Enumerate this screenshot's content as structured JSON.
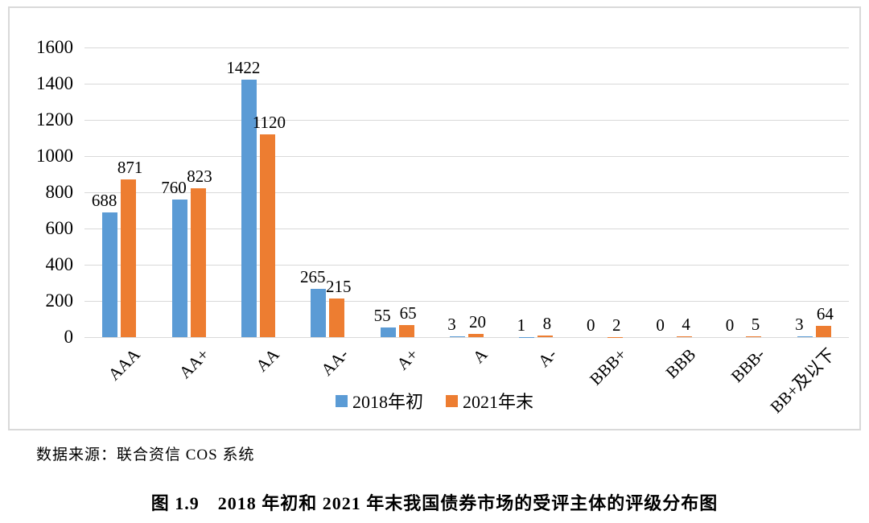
{
  "chart_data": {
    "type": "bar",
    "title": "",
    "xlabel": "",
    "ylabel": "",
    "categories": [
      "AAA",
      "AA+",
      "AA",
      "AA-",
      "A+",
      "A",
      "A-",
      "BBB+",
      "BBB",
      "BBB-",
      "BB+及以下"
    ],
    "series": [
      {
        "name": "2018年初",
        "color": "#5B9BD5",
        "values": [
          688,
          760,
          1422,
          265,
          55,
          3,
          1,
          0,
          0,
          0,
          3
        ]
      },
      {
        "name": "2021年末",
        "color": "#ED7D31",
        "values": [
          871,
          823,
          1120,
          215,
          65,
          20,
          8,
          2,
          4,
          5,
          64
        ]
      }
    ],
    "ylim": [
      0,
      1600
    ],
    "yticks": [
      0,
      200,
      400,
      600,
      800,
      1000,
      1200,
      1400,
      1600
    ],
    "grid": true,
    "gridline_color": "#d9d9d9",
    "frame_border_color": "#d9d9d9",
    "legend_position": "bottom",
    "data_labels": true
  },
  "source_note": "数据来源：联合资信 COS 系统",
  "caption": "图 1.9　2018 年初和 2021 年末我国债券市场的受评主体的评级分布图"
}
